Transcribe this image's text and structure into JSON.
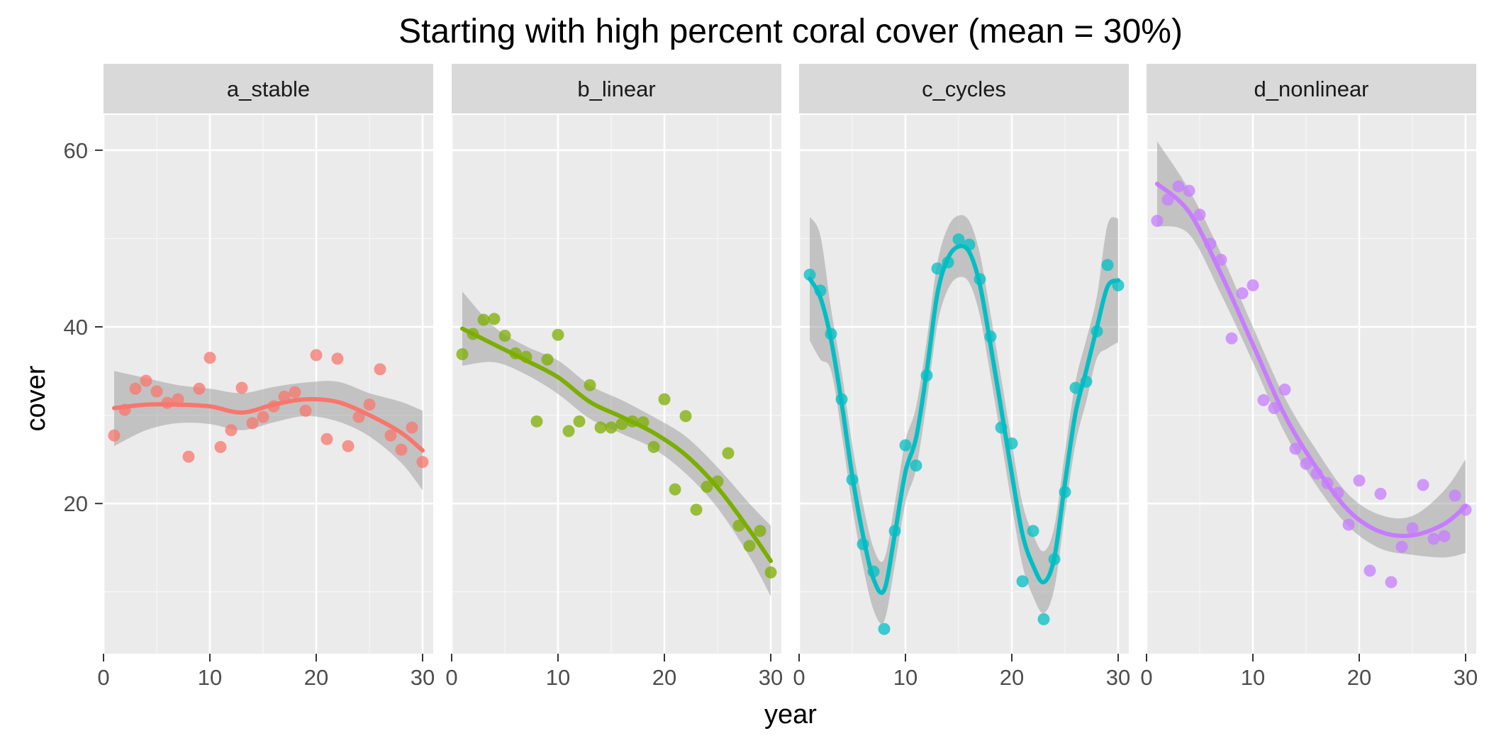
{
  "chart_data": {
    "type": "scatter",
    "title": "Starting with high percent coral cover (mean = 30%)",
    "xlabel": "year",
    "ylabel": "cover",
    "xlim": [
      0,
      31
    ],
    "ylim": [
      3,
      64
    ],
    "x_ticks": [
      0,
      10,
      20,
      30
    ],
    "y_ticks": [
      20,
      40,
      60
    ],
    "grid": true,
    "legend": "none",
    "panels": [
      {
        "name": "a_stable",
        "color": "#F8766D",
        "x": [
          1,
          2,
          3,
          4,
          5,
          6,
          7,
          8,
          9,
          10,
          11,
          12,
          13,
          14,
          15,
          16,
          17,
          18,
          19,
          20,
          21,
          22,
          23,
          24,
          25,
          26,
          27,
          28,
          29,
          30
        ],
        "values": [
          27.7,
          30.6,
          33.0,
          33.9,
          32.7,
          31.4,
          31.8,
          25.3,
          33.0,
          36.5,
          26.4,
          28.3,
          33.1,
          29.1,
          29.8,
          31.0,
          32.1,
          32.6,
          30.5,
          36.8,
          27.3,
          36.4,
          26.5,
          29.8,
          31.2,
          35.2,
          27.7,
          26.1,
          28.6,
          24.7
        ],
        "smooth_x": [
          1,
          4,
          7,
          10,
          13,
          16,
          19,
          22,
          25,
          28,
          30
        ],
        "smooth_y": [
          30.8,
          31.2,
          31.2,
          31.0,
          30.3,
          31.2,
          31.8,
          31.5,
          30.0,
          28.0,
          26.0
        ],
        "band_upper": [
          35.0,
          34.2,
          33.4,
          33.0,
          32.5,
          33.2,
          33.7,
          33.8,
          32.5,
          31.5,
          30.5
        ],
        "band_lower": [
          26.5,
          28.3,
          29.1,
          29.0,
          28.3,
          29.2,
          29.9,
          29.3,
          27.6,
          24.6,
          21.5
        ]
      },
      {
        "name": "b_linear",
        "color": "#7CAE00",
        "x": [
          1,
          2,
          3,
          4,
          5,
          6,
          7,
          8,
          9,
          10,
          11,
          12,
          13,
          14,
          15,
          16,
          17,
          18,
          19,
          20,
          21,
          22,
          23,
          24,
          25,
          26,
          27,
          28,
          29,
          30
        ],
        "values": [
          36.9,
          39.2,
          40.8,
          40.9,
          39.0,
          37.0,
          36.6,
          29.3,
          36.3,
          39.1,
          28.2,
          29.3,
          33.4,
          28.6,
          28.6,
          29.0,
          29.3,
          29.2,
          26.4,
          31.8,
          21.6,
          29.9,
          19.3,
          21.9,
          22.5,
          25.7,
          17.5,
          15.2,
          16.9,
          12.2
        ],
        "smooth_x": [
          1,
          4,
          7,
          10,
          13,
          16,
          19,
          22,
          25,
          28,
          30
        ],
        "smooth_y": [
          39.8,
          38.0,
          36.2,
          34.3,
          31.5,
          29.8,
          28.0,
          25.5,
          21.8,
          17.0,
          13.5
        ],
        "band_upper": [
          44.0,
          40.0,
          37.8,
          36.2,
          33.4,
          31.7,
          29.8,
          27.6,
          24.1,
          20.0,
          17.5
        ],
        "band_lower": [
          35.6,
          36.0,
          34.6,
          32.4,
          29.6,
          27.9,
          26.2,
          23.4,
          19.5,
          14.0,
          9.5
        ]
      },
      {
        "name": "c_cycles",
        "color": "#00BFC4",
        "x": [
          1,
          2,
          3,
          4,
          5,
          6,
          7,
          8,
          9,
          10,
          11,
          12,
          13,
          14,
          15,
          16,
          17,
          18,
          19,
          20,
          21,
          22,
          23,
          24,
          25,
          26,
          27,
          28,
          29,
          30
        ],
        "values": [
          45.9,
          44.1,
          39.2,
          31.8,
          22.7,
          15.4,
          12.3,
          5.8,
          16.9,
          26.6,
          24.3,
          34.5,
          46.6,
          47.3,
          49.9,
          49.3,
          45.4,
          38.9,
          28.6,
          26.8,
          11.2,
          16.9,
          6.9,
          13.7,
          21.3,
          33.1,
          33.8,
          39.5,
          47.0,
          44.7
        ]
      },
      {
        "name": "d_nonlinear",
        "color": "#C77CFF",
        "x": [
          1,
          2,
          3,
          4,
          5,
          6,
          7,
          8,
          9,
          10,
          11,
          12,
          13,
          14,
          15,
          16,
          17,
          18,
          19,
          20,
          21,
          22,
          23,
          24,
          25,
          26,
          27,
          28,
          29,
          30
        ],
        "values": [
          52.0,
          54.4,
          55.9,
          55.4,
          52.7,
          49.4,
          47.6,
          38.7,
          43.8,
          44.7,
          31.7,
          30.8,
          32.9,
          26.2,
          24.5,
          23.4,
          22.3,
          21.2,
          17.6,
          22.6,
          12.4,
          21.1,
          11.1,
          15.1,
          17.2,
          22.1,
          16.0,
          16.3,
          20.9,
          19.3
        ],
        "smooth_x": [
          1,
          4,
          7,
          10,
          13,
          16,
          19,
          22,
          25,
          28,
          30
        ],
        "smooth_y": [
          56.2,
          53.0,
          46.0,
          38.0,
          30.0,
          24.0,
          19.2,
          16.8,
          16.4,
          17.7,
          19.7
        ],
        "band_upper": [
          61.0,
          55.5,
          48.3,
          40.0,
          32.0,
          26.0,
          21.0,
          18.7,
          18.6,
          21.5,
          25.0
        ],
        "band_lower": [
          51.4,
          50.5,
          43.7,
          36.0,
          28.0,
          22.0,
          17.4,
          14.9,
          14.2,
          13.9,
          14.4
        ]
      }
    ]
  }
}
